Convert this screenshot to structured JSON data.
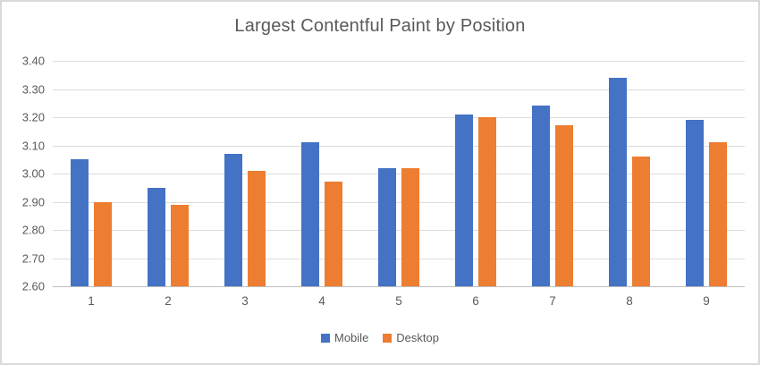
{
  "chart_data": {
    "type": "bar",
    "title": "Largest Contentful Paint by Position",
    "xlabel": "",
    "ylabel": "",
    "categories": [
      "1",
      "2",
      "3",
      "4",
      "5",
      "6",
      "7",
      "8",
      "9"
    ],
    "series": [
      {
        "name": "Mobile",
        "color": "#4472C4",
        "values": [
          3.05,
          2.95,
          3.07,
          3.11,
          3.02,
          3.21,
          3.24,
          3.34,
          3.19
        ]
      },
      {
        "name": "Desktop",
        "color": "#ED7D31",
        "values": [
          2.9,
          2.89,
          3.01,
          2.97,
          3.02,
          3.2,
          3.17,
          3.06,
          3.11
        ]
      }
    ],
    "ylim": [
      2.6,
      3.4
    ],
    "ytick_step": 0.1,
    "ytick_labels": [
      "2.60",
      "2.70",
      "2.80",
      "2.90",
      "3.00",
      "3.10",
      "3.20",
      "3.30",
      "3.40"
    ],
    "grid": true,
    "legend_position": "bottom",
    "style_colors": {
      "background": "#FFFFFF",
      "chart_border": "#D9D9D9",
      "gridline": "#DCDCDC",
      "axis_line": "#BFBFBF",
      "text": "#595959"
    }
  }
}
